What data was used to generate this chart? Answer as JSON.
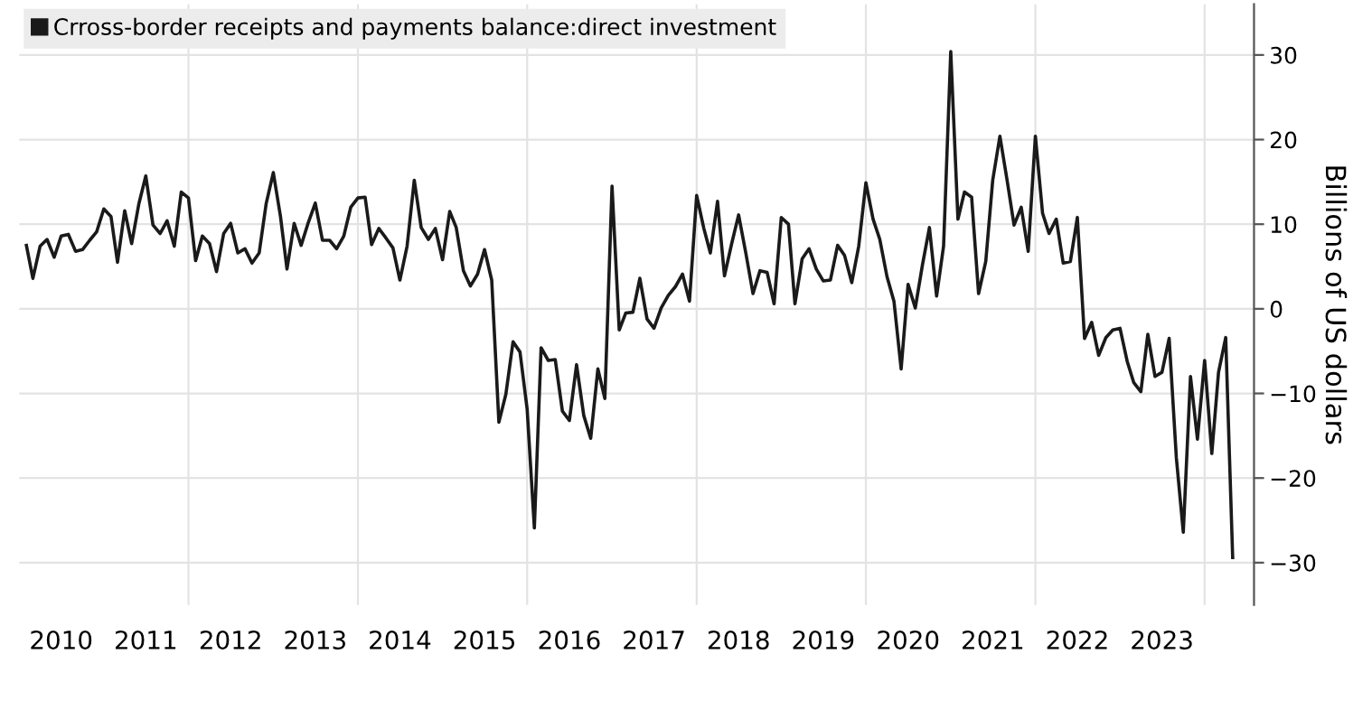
{
  "chart_data": {
    "type": "line",
    "ylabel": "Billions of US dollars",
    "xlim": [
      "2010-01",
      "2024-08"
    ],
    "ylim": [
      -35,
      36
    ],
    "xticks": [
      {
        "value": "2010-07",
        "label": "2010"
      },
      {
        "value": "2011-07",
        "label": "2011"
      },
      {
        "value": "2012-07",
        "label": "2012"
      },
      {
        "value": "2013-07",
        "label": "2013"
      },
      {
        "value": "2014-07",
        "label": "2014"
      },
      {
        "value": "2015-07",
        "label": "2015"
      },
      {
        "value": "2016-07",
        "label": "2016"
      },
      {
        "value": "2017-07",
        "label": "2017"
      },
      {
        "value": "2018-07",
        "label": "2018"
      },
      {
        "value": "2019-07",
        "label": "2019"
      },
      {
        "value": "2020-07",
        "label": "2020"
      },
      {
        "value": "2021-07",
        "label": "2021"
      },
      {
        "value": "2022-07",
        "label": "2022"
      },
      {
        "value": "2023-07",
        "label": "2023"
      },
      {
        "value": "2012-01",
        "label": null
      },
      {
        "value": "2014-01",
        "label": null
      },
      {
        "value": "2016-01",
        "label": null
      },
      {
        "value": "2018-01",
        "label": null
      },
      {
        "value": "2020-01",
        "label": null
      },
      {
        "value": "2022-01",
        "label": null
      },
      {
        "value": "2024-01",
        "label": null
      }
    ],
    "yticks": [
      -30,
      -20,
      -10,
      0,
      10,
      20,
      30
    ],
    "grid": true,
    "legend": "top left",
    "line_style": "solid",
    "series": [
      {
        "name": "Crross-border receipts and payments balance:direct investment",
        "color": "#1a1a1a",
        "x": [
          "2010-02",
          "2010-03",
          "2010-04",
          "2010-05",
          "2010-06",
          "2010-07",
          "2010-08",
          "2010-09",
          "2010-10",
          "2010-11",
          "2010-12",
          "2011-01",
          "2011-02",
          "2011-03",
          "2011-04",
          "2011-05",
          "2011-06",
          "2011-07",
          "2011-08",
          "2011-09",
          "2011-10",
          "2011-11",
          "2011-12",
          "2012-01",
          "2012-02",
          "2012-03",
          "2012-04",
          "2012-05",
          "2012-06",
          "2012-07",
          "2012-08",
          "2012-09",
          "2012-10",
          "2012-11",
          "2012-12",
          "2013-01",
          "2013-02",
          "2013-03",
          "2013-04",
          "2013-05",
          "2013-06",
          "2013-07",
          "2013-08",
          "2013-09",
          "2013-10",
          "2013-11",
          "2013-12",
          "2014-01",
          "2014-02",
          "2014-03",
          "2014-04",
          "2014-05",
          "2014-06",
          "2014-07",
          "2014-08",
          "2014-09",
          "2014-10",
          "2014-11",
          "2014-12",
          "2015-01",
          "2015-02",
          "2015-03",
          "2015-04",
          "2015-05",
          "2015-06",
          "2015-07",
          "2015-08",
          "2015-09",
          "2015-10",
          "2015-11",
          "2015-12",
          "2016-01",
          "2016-02",
          "2016-03",
          "2016-04",
          "2016-05",
          "2016-06",
          "2016-07",
          "2016-08",
          "2016-09",
          "2016-10",
          "2016-11",
          "2016-12",
          "2017-01",
          "2017-02",
          "2017-03",
          "2017-04",
          "2017-05",
          "2017-06",
          "2017-07",
          "2017-08",
          "2017-09",
          "2017-10",
          "2017-11",
          "2017-12",
          "2018-01",
          "2018-02",
          "2018-03",
          "2018-04",
          "2018-05",
          "2018-06",
          "2018-07",
          "2018-08",
          "2018-09",
          "2018-10",
          "2018-11",
          "2018-12",
          "2019-01",
          "2019-02",
          "2019-03",
          "2019-04",
          "2019-05",
          "2019-06",
          "2019-07",
          "2019-08",
          "2019-09",
          "2019-10",
          "2019-11",
          "2019-12",
          "2020-01",
          "2020-02",
          "2020-03",
          "2020-04",
          "2020-05",
          "2020-06",
          "2020-07",
          "2020-08",
          "2020-09",
          "2020-10",
          "2020-11",
          "2020-12",
          "2021-01",
          "2021-02",
          "2021-03",
          "2021-04",
          "2021-05",
          "2021-06",
          "2021-07",
          "2021-08",
          "2021-09",
          "2021-10",
          "2021-11",
          "2021-12",
          "2022-01",
          "2022-02",
          "2022-03",
          "2022-04",
          "2022-05",
          "2022-06",
          "2022-07",
          "2022-08",
          "2022-09",
          "2022-10",
          "2022-11",
          "2022-12",
          "2023-01",
          "2023-02",
          "2023-03",
          "2023-04",
          "2023-05",
          "2023-06",
          "2023-07",
          "2023-08",
          "2023-09",
          "2023-10",
          "2023-11",
          "2023-12",
          "2024-01",
          "2024-02",
          "2024-03",
          "2024-04",
          "2024-05"
        ],
        "values": [
          7.5,
          3.6,
          7.4,
          8.2,
          6.1,
          8.6,
          8.8,
          6.8,
          7.0,
          8.1,
          9.1,
          11.8,
          10.9,
          5.5,
          11.6,
          7.7,
          12.4,
          15.7,
          9.9,
          8.9,
          10.4,
          7.4,
          13.8,
          13.1,
          5.7,
          8.6,
          7.7,
          4.4,
          8.9,
          10.1,
          6.6,
          7.1,
          5.4,
          6.6,
          12.4,
          16.1,
          10.9,
          4.7,
          10.1,
          7.5,
          10.2,
          12.5,
          8.1,
          8.1,
          7.1,
          8.6,
          12.0,
          13.1,
          13.2,
          7.6,
          9.5,
          8.4,
          7.2,
          3.4,
          7.4,
          15.2,
          9.6,
          8.2,
          9.5,
          5.8,
          11.5,
          9.6,
          4.5,
          2.7,
          4.1,
          7.0,
          3.4,
          -13.4,
          -10.1,
          -3.9,
          -5.1,
          -11.9,
          -25.9,
          -4.6,
          -6.1,
          -6.0,
          -12.1,
          -13.2,
          -6.6,
          -12.6,
          -15.3,
          -7.1,
          -10.6,
          14.5,
          -2.5,
          -0.5,
          -0.4,
          3.6,
          -1.2,
          -2.3,
          0.1,
          1.6,
          2.6,
          4.1,
          0.9,
          13.4,
          9.5,
          6.6,
          12.7,
          3.9,
          7.7,
          11.1,
          6.6,
          1.8,
          4.5,
          4.3,
          0.6,
          10.8,
          10.0,
          0.6,
          5.9,
          7.1,
          4.7,
          3.3,
          3.4,
          7.5,
          6.3,
          3.1,
          7.4,
          14.9,
          10.6,
          8.2,
          3.8,
          0.9,
          -7.1,
          2.9,
          0.1,
          5.2,
          9.6,
          1.5,
          7.4,
          30.4,
          10.6,
          13.8,
          13.2,
          1.8,
          5.6,
          15.2,
          20.4,
          15.2,
          9.9,
          12.0,
          6.8,
          20.4,
          11.3,
          8.9,
          10.6,
          5.4,
          5.6,
          10.8,
          -3.5,
          -1.6,
          -5.5,
          -3.4,
          -2.5,
          -2.3,
          -6.2,
          -8.7,
          -9.8,
          -3.0,
          -8.0,
          -7.5,
          -3.5,
          -17.6,
          -26.4,
          -8.0,
          -15.4,
          -6.1,
          -17.1,
          -7.5,
          -3.4,
          -29.4
        ]
      }
    ]
  }
}
